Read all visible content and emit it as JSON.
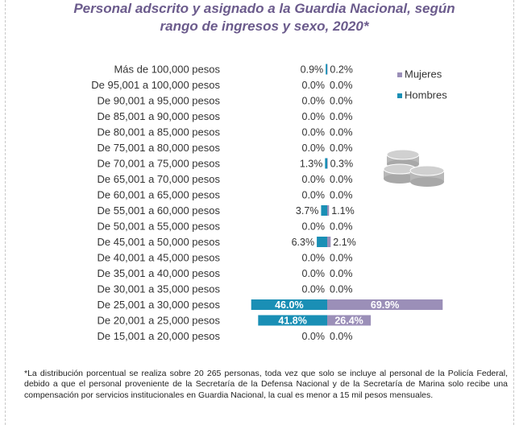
{
  "title": {
    "line1": "Personal adscrito y asignado a la Guardia Nacional, según",
    "line2": "rango de ingresos y sexo, 2020*"
  },
  "note": "*La distribución porcentual se realiza sobre 20 265 personas, toda vez que solo se incluye al personal de la Policía Federal, debido a que el personal proveniente de la Secretaría de la Defensa Nacional y de la Secretaría de Marina solo recibe una compensación por servicios institucionales en Guardia Nacional, la cual es menor a 15 mil pesos mensuales.",
  "icon": "coins-icon",
  "chart_data": {
    "type": "bar",
    "orientation": "horizontal-diverging",
    "categories": [
      "Más de 100,000 pesos",
      "De 95,001 a 100,000 pesos",
      "De 90,001 a 95,000 pesos",
      "De 85,001 a 90,000 pesos",
      "De 80,001 a 85,000 pesos",
      "De 75,001 a 80,000 pesos",
      "De 70,001 a 75,000 pesos",
      "De 65,001 a 70,000 pesos",
      "De 60,001 a 65,000 pesos",
      "De 55,001 a 60,000 pesos",
      "De 50,001 a 55,000 pesos",
      "De 45,001 a 50,000 pesos",
      "De 40,001 a 45,000 pesos",
      "De 35,001 a 40,000 pesos",
      "De 30,001 a 35,000 pesos",
      "De 25,001 a 30,000 pesos",
      "De 20,001 a 25,000 pesos",
      "De 15,001 a 20,000 pesos"
    ],
    "series": [
      {
        "name": "Hombres",
        "color": "#1a8fb5",
        "side": "left",
        "values": [
          0.9,
          0.0,
          0.0,
          0.0,
          0.0,
          0.0,
          1.3,
          0.0,
          0.0,
          3.7,
          0.0,
          6.3,
          0.0,
          0.0,
          0.0,
          46.0,
          41.8,
          0.0
        ],
        "labels": [
          "0.9%",
          "0.0%",
          "0.0%",
          "0.0%",
          "0.0%",
          "0.0%",
          "1.3%",
          "0.0%",
          "0.0%",
          "3.7%",
          "0.0%",
          "6.3%",
          "0.0%",
          "0.0%",
          "0.0%",
          "46.0%",
          "41.8%",
          "0.0%"
        ]
      },
      {
        "name": "Mujeres",
        "color": "#9b8fb8",
        "side": "right",
        "values": [
          0.2,
          0.0,
          0.0,
          0.0,
          0.0,
          0.0,
          0.3,
          0.0,
          0.0,
          1.1,
          0.0,
          2.1,
          0.0,
          0.0,
          0.0,
          69.9,
          26.4,
          0.0
        ],
        "labels": [
          "0.2%",
          "0.0%",
          "0.0%",
          "0.0%",
          "0.0%",
          "0.0%",
          "0.3%",
          "0.0%",
          "0.0%",
          "1.1%",
          "0.0%",
          "2.1%",
          "0.0%",
          "0.0%",
          "0.0%",
          "69.9%",
          "26.4%",
          "0.0%"
        ]
      }
    ],
    "legend": {
      "placement": "right",
      "entries": [
        "Mujeres",
        "Hombres"
      ]
    },
    "grid": false
  }
}
